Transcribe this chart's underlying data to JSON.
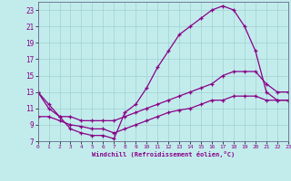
{
  "xlabel": "Windchill (Refroidissement éolien,°C)",
  "bg_color": "#c2ecec",
  "line_color": "#880088",
  "grid_color": "#a0d0d0",
  "xlim": [
    0,
    23
  ],
  "ylim": [
    7,
    24
  ],
  "xticks": [
    0,
    1,
    2,
    3,
    4,
    5,
    6,
    7,
    8,
    9,
    10,
    11,
    12,
    13,
    14,
    15,
    16,
    17,
    18,
    19,
    20,
    21,
    22,
    23
  ],
  "yticks": [
    7,
    9,
    11,
    13,
    15,
    17,
    19,
    21,
    23
  ],
  "line1_x": [
    0,
    1,
    2,
    3,
    4,
    5,
    6,
    7,
    8,
    9,
    10,
    11,
    12,
    13,
    14,
    15,
    16,
    17,
    18,
    19,
    20,
    21,
    22,
    23
  ],
  "line1_y": [
    13,
    11,
    10,
    8.5,
    8,
    7.7,
    7.7,
    7.3,
    10.5,
    11.5,
    13.5,
    16,
    18,
    20,
    21,
    22,
    23,
    23.5,
    23,
    21,
    18,
    13,
    12,
    12
  ],
  "line2_x": [
    0,
    1,
    2,
    3,
    4,
    5,
    6,
    7,
    8,
    9,
    10,
    11,
    12,
    13,
    14,
    15,
    16,
    17,
    18,
    19,
    20,
    21,
    22,
    23
  ],
  "line2_y": [
    13,
    11.5,
    10,
    10,
    9.5,
    9.5,
    9.5,
    9.5,
    10,
    10.5,
    11,
    11.5,
    12,
    12.5,
    13,
    13.5,
    14,
    15,
    15.5,
    15.5,
    15.5,
    14,
    13,
    13
  ],
  "line3_x": [
    0,
    1,
    2,
    3,
    4,
    5,
    6,
    7,
    8,
    9,
    10,
    11,
    12,
    13,
    14,
    15,
    16,
    17,
    18,
    19,
    20,
    21,
    22,
    23
  ],
  "line3_y": [
    10,
    10,
    9.5,
    9,
    8.8,
    8.5,
    8.5,
    8,
    8.5,
    9,
    9.5,
    10,
    10.5,
    10.8,
    11,
    11.5,
    12,
    12,
    12.5,
    12.5,
    12.5,
    12,
    12,
    12
  ]
}
